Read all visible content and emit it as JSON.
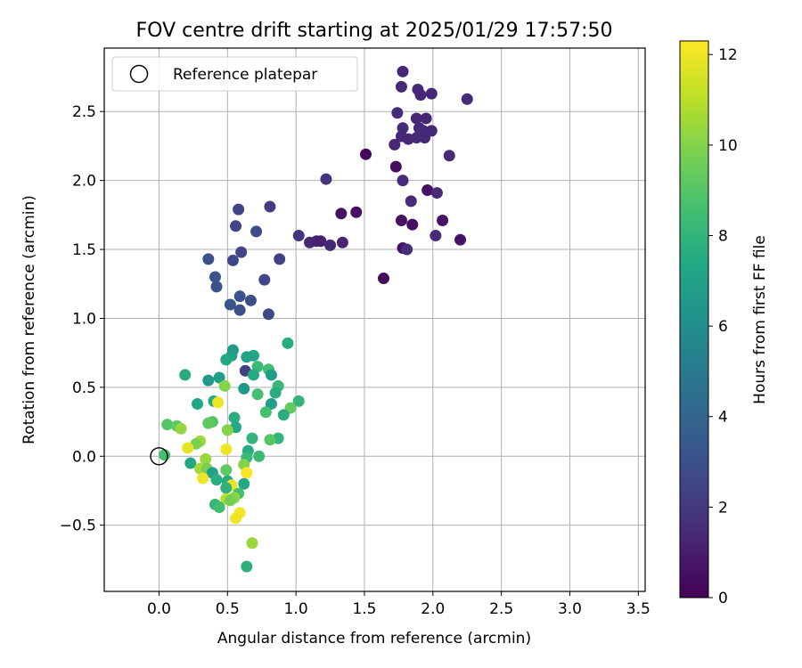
{
  "chart_data": {
    "type": "scatter",
    "title": "FOV centre drift starting at 2025/01/29 17:57:50",
    "xlabel": "Angular distance from reference (arcmin)",
    "ylabel": "Rotation from reference (arcmin)",
    "xlim": [
      -0.4,
      3.55
    ],
    "ylim": [
      -0.98,
      2.96
    ],
    "xticks": [
      0.0,
      0.5,
      1.0,
      1.5,
      2.0,
      2.5,
      3.0,
      3.5
    ],
    "xtick_labels": [
      "0.0",
      "0.5",
      "1.0",
      "1.5",
      "2.0",
      "2.5",
      "3.0",
      "3.5"
    ],
    "yticks": [
      -0.5,
      0.0,
      0.5,
      1.0,
      1.5,
      2.0,
      2.5
    ],
    "ytick_labels": [
      "−0.5",
      "0.0",
      "0.5",
      "1.0",
      "1.5",
      "2.0",
      "2.5"
    ],
    "grid": true,
    "legend": {
      "position": "top-left",
      "entries": [
        {
          "label": "Reference platepar",
          "marker": "open-circle",
          "x": 0.0,
          "y": 0.0
        }
      ]
    },
    "colorbar": {
      "label": "Hours from first FF file",
      "colormap": "viridis",
      "range": [
        0,
        12.3
      ],
      "ticks": [
        0,
        2,
        4,
        6,
        8,
        10,
        12
      ],
      "tick_labels": [
        "0",
        "2",
        "4",
        "6",
        "8",
        "10",
        "12"
      ]
    },
    "points": [
      {
        "x": 1.78,
        "y": 2.79,
        "c": 1.3
      },
      {
        "x": 1.77,
        "y": 2.68,
        "c": 1.4
      },
      {
        "x": 1.89,
        "y": 2.66,
        "c": 1.5
      },
      {
        "x": 1.91,
        "y": 2.62,
        "c": 1.4
      },
      {
        "x": 1.99,
        "y": 2.63,
        "c": 1.4
      },
      {
        "x": 2.25,
        "y": 2.59,
        "c": 1.5
      },
      {
        "x": 1.74,
        "y": 2.49,
        "c": 1.5
      },
      {
        "x": 1.88,
        "y": 2.45,
        "c": 1.4
      },
      {
        "x": 1.95,
        "y": 2.45,
        "c": 1.3
      },
      {
        "x": 1.78,
        "y": 2.38,
        "c": 1.5
      },
      {
        "x": 1.9,
        "y": 2.38,
        "c": 1.4
      },
      {
        "x": 1.93,
        "y": 2.36,
        "c": 1.5
      },
      {
        "x": 1.99,
        "y": 2.36,
        "c": 1.4
      },
      {
        "x": 1.77,
        "y": 2.32,
        "c": 1.4
      },
      {
        "x": 1.82,
        "y": 2.3,
        "c": 1.4
      },
      {
        "x": 1.88,
        "y": 2.31,
        "c": 1.5
      },
      {
        "x": 1.94,
        "y": 2.31,
        "c": 1.4
      },
      {
        "x": 1.72,
        "y": 2.26,
        "c": 1.4
      },
      {
        "x": 1.51,
        "y": 2.19,
        "c": 0.3
      },
      {
        "x": 2.12,
        "y": 2.18,
        "c": 1.5
      },
      {
        "x": 1.73,
        "y": 2.1,
        "c": 0.5
      },
      {
        "x": 1.78,
        "y": 2.0,
        "c": 1.5
      },
      {
        "x": 1.22,
        "y": 2.01,
        "c": 1.8
      },
      {
        "x": 1.96,
        "y": 1.93,
        "c": 0.6
      },
      {
        "x": 2.03,
        "y": 1.91,
        "c": 1.5
      },
      {
        "x": 1.84,
        "y": 1.85,
        "c": 1.5
      },
      {
        "x": 0.81,
        "y": 1.81,
        "c": 2.2
      },
      {
        "x": 0.58,
        "y": 1.79,
        "c": 2.5
      },
      {
        "x": 1.33,
        "y": 1.76,
        "c": 0.6
      },
      {
        "x": 1.44,
        "y": 1.77,
        "c": 0.5
      },
      {
        "x": 1.77,
        "y": 1.71,
        "c": 0.6
      },
      {
        "x": 1.85,
        "y": 1.68,
        "c": 0.5
      },
      {
        "x": 2.07,
        "y": 1.71,
        "c": 0.6
      },
      {
        "x": 0.56,
        "y": 1.67,
        "c": 2.5
      },
      {
        "x": 0.71,
        "y": 1.63,
        "c": 2.8
      },
      {
        "x": 1.02,
        "y": 1.6,
        "c": 1.8
      },
      {
        "x": 2.02,
        "y": 1.6,
        "c": 1.5
      },
      {
        "x": 1.1,
        "y": 1.55,
        "c": 1.3
      },
      {
        "x": 1.15,
        "y": 1.56,
        "c": 1.2
      },
      {
        "x": 1.18,
        "y": 1.56,
        "c": 1.1
      },
      {
        "x": 1.34,
        "y": 1.55,
        "c": 1.2
      },
      {
        "x": 1.25,
        "y": 1.53,
        "c": 1.4
      },
      {
        "x": 2.2,
        "y": 1.57,
        "c": 0.6
      },
      {
        "x": 1.78,
        "y": 1.51,
        "c": 0.5
      },
      {
        "x": 1.81,
        "y": 1.5,
        "c": 1.6
      },
      {
        "x": 0.6,
        "y": 1.48,
        "c": 2.5
      },
      {
        "x": 0.36,
        "y": 1.43,
        "c": 3.0
      },
      {
        "x": 0.54,
        "y": 1.42,
        "c": 2.6
      },
      {
        "x": 0.88,
        "y": 1.43,
        "c": 2.4
      },
      {
        "x": 1.64,
        "y": 1.29,
        "c": 0.3
      },
      {
        "x": 0.41,
        "y": 1.3,
        "c": 3.1
      },
      {
        "x": 0.77,
        "y": 1.28,
        "c": 2.6
      },
      {
        "x": 0.42,
        "y": 1.23,
        "c": 3.1
      },
      {
        "x": 0.59,
        "y": 1.16,
        "c": 3.2
      },
      {
        "x": 0.67,
        "y": 1.13,
        "c": 2.9
      },
      {
        "x": 0.52,
        "y": 1.1,
        "c": 3.3
      },
      {
        "x": 0.59,
        "y": 1.06,
        "c": 3.0
      },
      {
        "x": 0.8,
        "y": 1.03,
        "c": 2.7
      },
      {
        "x": 0.94,
        "y": 0.82,
        "c": 7.6
      },
      {
        "x": 0.54,
        "y": 0.77,
        "c": 6.6
      },
      {
        "x": 0.53,
        "y": 0.73,
        "c": 7.0
      },
      {
        "x": 0.69,
        "y": 0.73,
        "c": 7.3
      },
      {
        "x": 0.64,
        "y": 0.72,
        "c": 7.1
      },
      {
        "x": 0.49,
        "y": 0.7,
        "c": 7.4
      },
      {
        "x": 0.72,
        "y": 0.65,
        "c": 8.3
      },
      {
        "x": 0.8,
        "y": 0.63,
        "c": 8.5
      },
      {
        "x": 0.63,
        "y": 0.62,
        "c": 2.4
      },
      {
        "x": 0.19,
        "y": 0.59,
        "c": 7.5
      },
      {
        "x": 0.69,
        "y": 0.59,
        "c": 7.5
      },
      {
        "x": 0.82,
        "y": 0.59,
        "c": 6.8
      },
      {
        "x": 0.44,
        "y": 0.57,
        "c": 6.8
      },
      {
        "x": 0.36,
        "y": 0.55,
        "c": 6.6
      },
      {
        "x": 0.87,
        "y": 0.51,
        "c": 8.2
      },
      {
        "x": 0.48,
        "y": 0.51,
        "c": 10.0
      },
      {
        "x": 0.62,
        "y": 0.49,
        "c": 6.5
      },
      {
        "x": 0.85,
        "y": 0.46,
        "c": 7.6
      },
      {
        "x": 0.72,
        "y": 0.45,
        "c": 8.6
      },
      {
        "x": 1.02,
        "y": 0.4,
        "c": 8.0
      },
      {
        "x": 0.4,
        "y": 0.4,
        "c": 7.5
      },
      {
        "x": 0.43,
        "y": 0.39,
        "c": 12.0
      },
      {
        "x": 0.28,
        "y": 0.38,
        "c": 7.3
      },
      {
        "x": 0.82,
        "y": 0.38,
        "c": 6.9
      },
      {
        "x": 0.96,
        "y": 0.35,
        "c": 9.3
      },
      {
        "x": 0.78,
        "y": 0.32,
        "c": 8.6
      },
      {
        "x": 0.91,
        "y": 0.3,
        "c": 7.6
      },
      {
        "x": 0.55,
        "y": 0.28,
        "c": 7.6
      },
      {
        "x": 0.39,
        "y": 0.25,
        "c": 9.0
      },
      {
        "x": 0.36,
        "y": 0.24,
        "c": 9.2
      },
      {
        "x": 0.06,
        "y": 0.23,
        "c": 9.0
      },
      {
        "x": 0.13,
        "y": 0.22,
        "c": 9.2
      },
      {
        "x": 0.56,
        "y": 0.21,
        "c": 7.4
      },
      {
        "x": 0.16,
        "y": 0.2,
        "c": 10.3
      },
      {
        "x": 0.5,
        "y": 0.19,
        "c": 10.0
      },
      {
        "x": 0.68,
        "y": 0.13,
        "c": 8.0
      },
      {
        "x": 0.87,
        "y": 0.13,
        "c": 8.0
      },
      {
        "x": 0.81,
        "y": 0.12,
        "c": 9.0
      },
      {
        "x": 0.3,
        "y": 0.11,
        "c": 10.5
      },
      {
        "x": 0.27,
        "y": 0.09,
        "c": 9.8
      },
      {
        "x": 0.21,
        "y": 0.06,
        "c": 11.8
      },
      {
        "x": 0.49,
        "y": 0.05,
        "c": 12.0
      },
      {
        "x": 0.65,
        "y": 0.04,
        "c": 7.6
      },
      {
        "x": 0.04,
        "y": 0.01,
        "c": 8.6
      },
      {
        "x": 0.73,
        "y": 0.0,
        "c": 8.3
      },
      {
        "x": 0.64,
        "y": -0.01,
        "c": 8.3
      },
      {
        "x": 0.34,
        "y": -0.02,
        "c": 10.4
      },
      {
        "x": 0.23,
        "y": -0.05,
        "c": 7.4
      },
      {
        "x": 0.62,
        "y": -0.06,
        "c": 10.0
      },
      {
        "x": 0.3,
        "y": -0.09,
        "c": 10.6
      },
      {
        "x": 0.35,
        "y": -0.09,
        "c": 9.8
      },
      {
        "x": 0.49,
        "y": -0.1,
        "c": 9.2
      },
      {
        "x": 0.39,
        "y": -0.12,
        "c": 7.0
      },
      {
        "x": 0.64,
        "y": -0.12,
        "c": 12.2
      },
      {
        "x": 0.32,
        "y": -0.16,
        "c": 12.0
      },
      {
        "x": 0.42,
        "y": -0.17,
        "c": 7.7
      },
      {
        "x": 0.5,
        "y": -0.18,
        "c": 7.5
      },
      {
        "x": 0.62,
        "y": -0.2,
        "c": 7.4
      },
      {
        "x": 0.53,
        "y": -0.21,
        "c": 11.9
      },
      {
        "x": 0.49,
        "y": -0.23,
        "c": 7.8
      },
      {
        "x": 0.58,
        "y": -0.27,
        "c": 8.6
      },
      {
        "x": 0.55,
        "y": -0.3,
        "c": 10.2
      },
      {
        "x": 0.49,
        "y": -0.31,
        "c": 11.0
      },
      {
        "x": 0.52,
        "y": -0.32,
        "c": 9.7
      },
      {
        "x": 0.41,
        "y": -0.35,
        "c": 8.1
      },
      {
        "x": 0.44,
        "y": -0.37,
        "c": 8.5
      },
      {
        "x": 0.59,
        "y": -0.41,
        "c": 12.1
      },
      {
        "x": 0.56,
        "y": -0.45,
        "c": 12.0
      },
      {
        "x": 0.68,
        "y": -0.63,
        "c": 10.4
      },
      {
        "x": 0.64,
        "y": -0.8,
        "c": 7.8
      }
    ]
  }
}
